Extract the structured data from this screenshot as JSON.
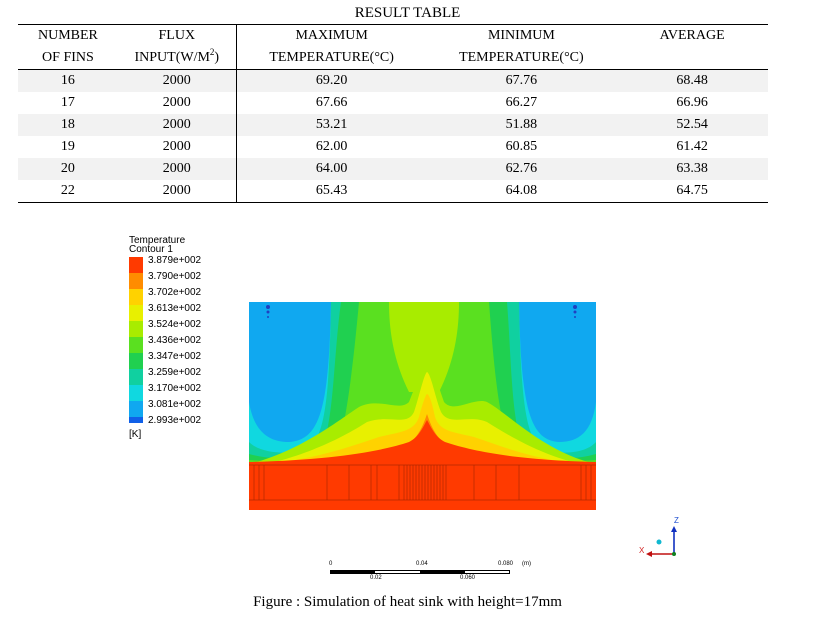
{
  "table": {
    "title": "RESULT TABLE",
    "headers_top": [
      "NUMBER",
      "FLUX",
      "MAXIMUM",
      "MINIMUM",
      "AVERAGE"
    ],
    "headers_sub": [
      "OF FINS",
      "INPUT(W/M",
      "2",
      ")",
      "TEMPERATURE(°C)",
      "TEMPERATURE(°C)"
    ],
    "rows": [
      [
        "16",
        "2000",
        "69.20",
        "67.76",
        "68.48"
      ],
      [
        "17",
        "2000",
        "67.66",
        "66.27",
        "66.96"
      ],
      [
        "18",
        "2000",
        "53.21",
        "51.88",
        "52.54"
      ],
      [
        "19",
        "2000",
        "62.00",
        "60.85",
        "61.42"
      ],
      [
        "20",
        "2000",
        "64.00",
        "62.76",
        "63.38"
      ],
      [
        "22",
        "2000",
        "65.43",
        "64.08",
        "64.75"
      ]
    ]
  },
  "legend": {
    "title_line1": "Temperature",
    "title_line2": "Contour 1",
    "unit": "[K]",
    "levels": [
      "3.879e+002",
      "3.790e+002",
      "3.702e+002",
      "3.613e+002",
      "3.524e+002",
      "3.436e+002",
      "3.347e+002",
      "3.259e+002",
      "3.170e+002",
      "3.081e+002",
      "2.993e+002"
    ],
    "colors": [
      "#ff3a00",
      "#ff8c00",
      "#ffd200",
      "#e8f000",
      "#a8ec00",
      "#5ae020",
      "#20d050",
      "#10d0a0",
      "#10d8e0",
      "#10a8f0",
      "#1060e8"
    ]
  },
  "scale_bar": {
    "top_labels": [
      "0",
      "0.04",
      "0.080",
      "(m)"
    ],
    "bottom_labels": [
      "0.02",
      "0.060"
    ]
  },
  "axes": {
    "z": "Z",
    "x": "X"
  },
  "caption": "Figure : Simulation of heat sink with height=17mm"
}
